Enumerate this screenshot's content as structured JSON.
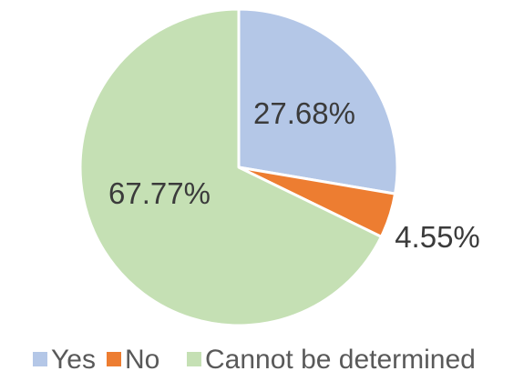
{
  "chart_data": {
    "type": "pie",
    "title": "",
    "slices": [
      {
        "label": "Yes",
        "value": 27.68,
        "display": "27.68%",
        "color": "#b4c7e7"
      },
      {
        "label": "No",
        "value": 4.55,
        "display": "4.55%",
        "color": "#ed7d31"
      },
      {
        "label": "Cannot be determined",
        "value": 67.77,
        "display": "67.77%",
        "color": "#c5e0b4"
      }
    ],
    "start_angle": "12 o'clock",
    "direction": "clockwise",
    "legend_position": "bottom"
  }
}
